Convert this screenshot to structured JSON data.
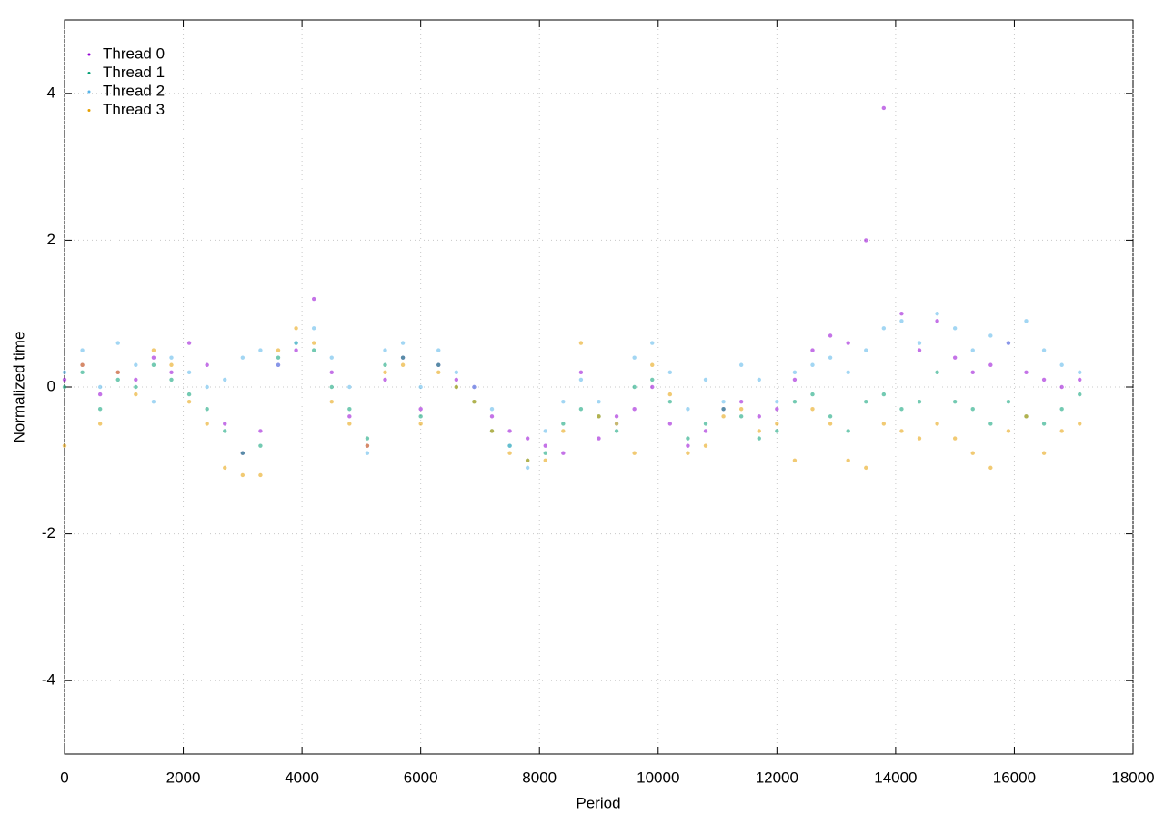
{
  "chart_data": {
    "type": "scatter",
    "x_label": "Period",
    "y_label": "Normalized time",
    "xlim": [
      0,
      18000
    ],
    "ylim": [
      -5,
      5
    ],
    "xticks": [
      0,
      2000,
      4000,
      6000,
      8000,
      10000,
      12000,
      14000,
      16000,
      18000
    ],
    "yticks": [
      -4,
      -2,
      0,
      2,
      4
    ],
    "grid": true,
    "legend": "top-left",
    "x": [
      0,
      300,
      600,
      900,
      1200,
      1500,
      1800,
      2100,
      2400,
      2700,
      3000,
      3300,
      3600,
      3900,
      4200,
      4500,
      4800,
      5100,
      5400,
      5700,
      6000,
      6300,
      6600,
      6900,
      7200,
      7500,
      7800,
      8100,
      8400,
      8700,
      9000,
      9300,
      9600,
      9900,
      10200,
      10500,
      10800,
      11100,
      11400,
      11700,
      12000,
      12300,
      12600,
      12900,
      13200,
      13500,
      13800,
      14100,
      14400,
      14700,
      15000,
      15300,
      15600,
      15900,
      16200,
      16500,
      16800,
      17100
    ],
    "series": [
      {
        "name": "Thread 0",
        "color": "#9400d3",
        "values": [
          0.1,
          0.3,
          -0.1,
          0.2,
          0.1,
          0.4,
          0.2,
          0.6,
          0.3,
          -0.5,
          -0.9,
          -0.6,
          0.3,
          0.5,
          1.2,
          0.2,
          -0.4,
          -0.8,
          0.1,
          0.4,
          -0.3,
          0.3,
          0.1,
          0.0,
          -0.4,
          -0.6,
          -0.7,
          -0.8,
          -0.9,
          0.2,
          -0.7,
          -0.4,
          -0.3,
          0.0,
          -0.5,
          -0.8,
          -0.6,
          -0.3,
          -0.2,
          -0.4,
          -0.3,
          0.1,
          0.5,
          0.7,
          0.6,
          2.0,
          3.8,
          1.0,
          0.5,
          0.9,
          0.4,
          0.2,
          0.3,
          0.6,
          0.2,
          0.1,
          0.0,
          0.1
        ]
      },
      {
        "name": "Thread 1",
        "color": "#009e73",
        "values": [
          0.0,
          0.2,
          -0.3,
          0.1,
          0.0,
          0.3,
          0.1,
          -0.1,
          -0.3,
          -0.6,
          -0.9,
          -0.8,
          0.4,
          0.6,
          0.5,
          0.0,
          -0.3,
          -0.7,
          0.3,
          0.4,
          -0.4,
          0.3,
          0.0,
          -0.2,
          -0.6,
          -0.8,
          -1.0,
          -0.9,
          -0.5,
          -0.3,
          -0.4,
          -0.6,
          0.0,
          0.1,
          -0.2,
          -0.7,
          -0.5,
          -0.3,
          -0.4,
          -0.7,
          -0.6,
          -0.2,
          -0.1,
          -0.4,
          -0.6,
          -0.2,
          -0.1,
          -0.3,
          -0.2,
          0.2,
          -0.2,
          -0.3,
          -0.5,
          -0.2,
          -0.4,
          -0.5,
          -0.3,
          -0.1
        ]
      },
      {
        "name": "Thread 2",
        "color": "#56b4e9",
        "values": [
          0.2,
          0.5,
          0.0,
          0.6,
          0.3,
          -0.2,
          0.4,
          0.2,
          0.0,
          0.1,
          0.4,
          0.5,
          0.3,
          0.6,
          0.8,
          0.4,
          0.0,
          -0.9,
          0.5,
          0.6,
          0.0,
          0.5,
          0.2,
          0.0,
          -0.3,
          -0.8,
          -1.1,
          -0.6,
          -0.2,
          0.1,
          -0.2,
          -0.5,
          0.4,
          0.6,
          0.2,
          -0.3,
          0.1,
          -0.2,
          0.3,
          0.1,
          -0.2,
          0.2,
          0.3,
          0.4,
          0.2,
          0.5,
          0.8,
          0.9,
          0.6,
          1.0,
          0.8,
          0.5,
          0.7,
          0.6,
          0.9,
          0.5,
          0.3,
          0.2
        ]
      },
      {
        "name": "Thread 3",
        "color": "#e69f00",
        "values": [
          -0.8,
          0.3,
          -0.5,
          0.2,
          -0.1,
          0.5,
          0.3,
          -0.2,
          -0.5,
          -1.1,
          -1.2,
          -1.2,
          0.5,
          0.8,
          0.6,
          -0.2,
          -0.5,
          -0.8,
          0.2,
          0.3,
          -0.5,
          0.2,
          0.0,
          -0.2,
          -0.6,
          -0.9,
          -1.0,
          -1.0,
          -0.6,
          0.6,
          -0.4,
          -0.5,
          -0.9,
          0.3,
          -0.1,
          -0.9,
          -0.8,
          -0.4,
          -0.3,
          -0.6,
          -0.5,
          -1.0,
          -0.3,
          -0.5,
          -1.0,
          -1.1,
          -0.5,
          -0.6,
          -0.7,
          -0.5,
          -0.7,
          -0.9,
          -1.1,
          -0.6,
          -0.4,
          -0.9,
          -0.6,
          -0.5
        ]
      }
    ]
  }
}
